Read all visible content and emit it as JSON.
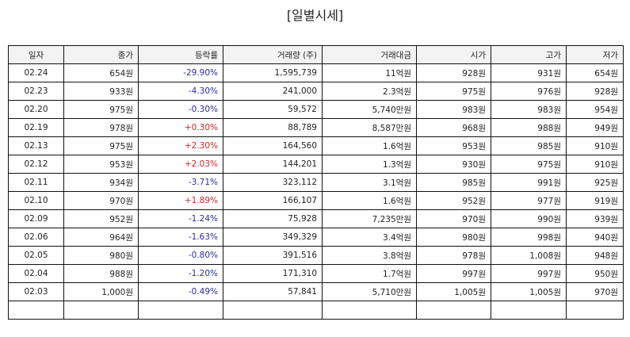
{
  "title": "[일별시세]",
  "columns": {
    "date": "일자",
    "close": "종가",
    "change": "등락률",
    "volume": "거래량 (주)",
    "amount": "거래대금",
    "open": "시가",
    "high": "고가",
    "low": "저가"
  },
  "colors": {
    "down": "#2b2ba8",
    "up": "#d62626"
  },
  "rows": [
    {
      "date": "02.24",
      "close": "654원",
      "change": "-29.90%",
      "volume": "1,595,739",
      "amount": "11억원",
      "open": "928원",
      "high": "931원",
      "low": "654원"
    },
    {
      "date": "02.23",
      "close": "933원",
      "change": "-4.30%",
      "volume": "241,000",
      "amount": "2.3억원",
      "open": "975원",
      "high": "976원",
      "low": "928원"
    },
    {
      "date": "02.20",
      "close": "975원",
      "change": "-0.30%",
      "volume": "59,572",
      "amount": "5,740만원",
      "open": "983원",
      "high": "983원",
      "low": "954원"
    },
    {
      "date": "02.19",
      "close": "978원",
      "change": "+0.30%",
      "volume": "88,789",
      "amount": "8,587만원",
      "open": "968원",
      "high": "988원",
      "low": "949원"
    },
    {
      "date": "02.13",
      "close": "975원",
      "change": "+2.30%",
      "volume": "164,560",
      "amount": "1.6억원",
      "open": "953원",
      "high": "985원",
      "low": "910원"
    },
    {
      "date": "02.12",
      "close": "953원",
      "change": "+2.03%",
      "volume": "144,201",
      "amount": "1.3억원",
      "open": "930원",
      "high": "975원",
      "low": "910원"
    },
    {
      "date": "02.11",
      "close": "934원",
      "change": "-3.71%",
      "volume": "323,112",
      "amount": "3.1억원",
      "open": "985원",
      "high": "991원",
      "low": "925원"
    },
    {
      "date": "02.10",
      "close": "970원",
      "change": "+1.89%",
      "volume": "166,107",
      "amount": "1.6억원",
      "open": "952원",
      "high": "977원",
      "low": "919원"
    },
    {
      "date": "02.09",
      "close": "952원",
      "change": "-1.24%",
      "volume": "75,928",
      "amount": "7,235만원",
      "open": "970원",
      "high": "990원",
      "low": "939원"
    },
    {
      "date": "02.06",
      "close": "964원",
      "change": "-1.63%",
      "volume": "349,329",
      "amount": "3.4억원",
      "open": "980원",
      "high": "998원",
      "low": "940원"
    },
    {
      "date": "02.05",
      "close": "980원",
      "change": "-0.80%",
      "volume": "391,516",
      "amount": "3.8억원",
      "open": "978원",
      "high": "1,008원",
      "low": "948원"
    },
    {
      "date": "02.04",
      "close": "988원",
      "change": "-1.20%",
      "volume": "171,310",
      "amount": "1.7억원",
      "open": "997원",
      "high": "997원",
      "low": "950원"
    },
    {
      "date": "02.03",
      "close": "1,000원",
      "change": "-0.49%",
      "volume": "57,841",
      "amount": "5,710만원",
      "open": "1,005원",
      "high": "1,005원",
      "low": "970원"
    },
    {
      "date": "",
      "close": "",
      "change": "",
      "volume": "",
      "amount": "",
      "open": "",
      "high": "",
      "low": ""
    }
  ]
}
